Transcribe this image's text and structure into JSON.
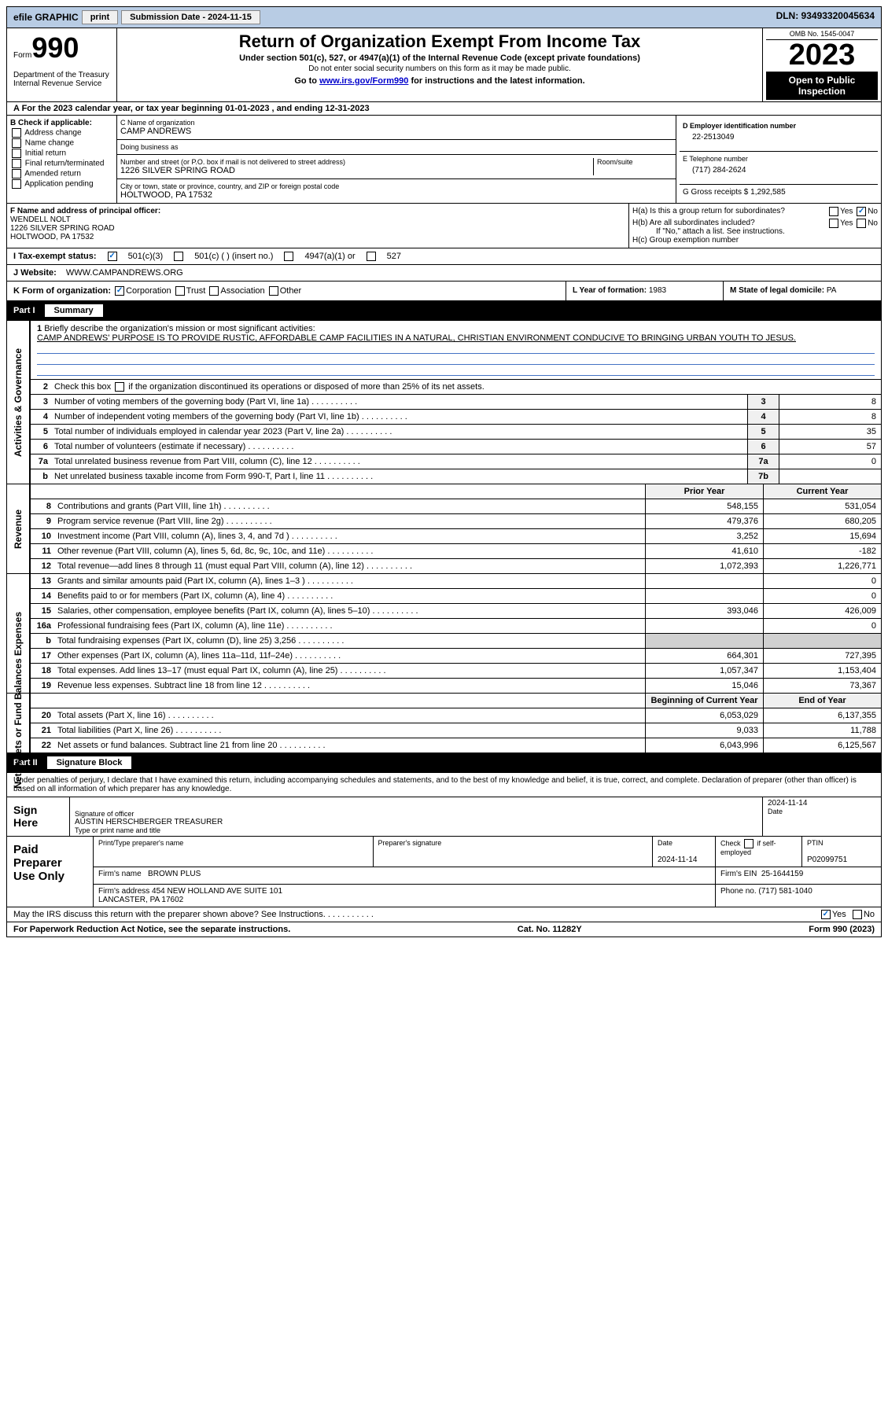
{
  "topbar": {
    "efile_label": "efile GRAPHIC",
    "print_label": "print",
    "submission_label": "Submission Date - 2024-11-15",
    "dln_label": "DLN: 93493320045634"
  },
  "header": {
    "form_label": "Form",
    "form_number": "990",
    "dept": "Department of the Treasury\nInternal Revenue Service",
    "title": "Return of Organization Exempt From Income Tax",
    "subtitle": "Under section 501(c), 527, or 4947(a)(1) of the Internal Revenue Code (except private foundations)",
    "note": "Do not enter social security numbers on this form as it may be made public.",
    "link_pre": "Go to ",
    "link_url": "www.irs.gov/Form990",
    "link_post": " for instructions and the latest information.",
    "omb": "OMB No. 1545-0047",
    "year": "2023",
    "inspection": "Open to Public Inspection"
  },
  "row_a": "A For the 2023 calendar year, or tax year beginning 01-01-2023   , and ending 12-31-2023",
  "box_b": {
    "title": "B Check if applicable:",
    "items": [
      "Address change",
      "Name change",
      "Initial return",
      "Final return/terminated",
      "Amended return",
      "Application pending"
    ]
  },
  "box_c": {
    "name_label": "C Name of organization",
    "name": "CAMP ANDREWS",
    "dba_label": "Doing business as",
    "dba": "",
    "addr_label": "Number and street (or P.O. box if mail is not delivered to street address)",
    "addr": "1226 SILVER SPRING ROAD",
    "room_label": "Room/suite",
    "city_label": "City or town, state or province, country, and ZIP or foreign postal code",
    "city": "HOLTWOOD, PA  17532"
  },
  "box_d": {
    "label": "D Employer identification number",
    "ein": "22-2513049",
    "phone_label": "E Telephone number",
    "phone": "(717) 284-2624",
    "gross_label": "G Gross receipts $",
    "gross": "1,292,585"
  },
  "box_f": {
    "label": "F Name and address of principal officer:",
    "name": "WENDELL NOLT",
    "addr1": "1226 SILVER SPRING ROAD",
    "addr2": "HOLTWOOD, PA  17532"
  },
  "box_h": {
    "ha": "H(a)  Is this a group return for subordinates?",
    "hb": "H(b)  Are all subordinates included?",
    "hb_note": "If \"No,\" attach a list. See instructions.",
    "hc": "H(c)  Group exemption number",
    "yes": "Yes",
    "no": "No"
  },
  "row_i": {
    "label": "I   Tax-exempt status:",
    "opt1": "501(c)(3)",
    "opt2": "501(c) (  ) (insert no.)",
    "opt3": "4947(a)(1) or",
    "opt4": "527"
  },
  "row_j": {
    "label": "J   Website:",
    "val": "WWW.CAMPANDREWS.ORG"
  },
  "row_k": {
    "label": "K Form of organization:",
    "opts": [
      "Corporation",
      "Trust",
      "Association",
      "Other"
    ]
  },
  "row_l": {
    "label": "L Year of formation:",
    "val": "1983"
  },
  "row_m": {
    "label": "M State of legal domicile:",
    "val": "PA"
  },
  "part1": {
    "num": "Part I",
    "title": "Summary",
    "sidebar_gov": "Activities & Governance",
    "sidebar_rev": "Revenue",
    "sidebar_exp": "Expenses",
    "sidebar_net": "Net Assets or Fund Balances",
    "q1_label": "Briefly describe the organization's mission or most significant activities:",
    "q1_text": "CAMP ANDREWS' PURPOSE IS TO PROVIDE RUSTIC, AFFORDABLE CAMP FACILITIES IN A NATURAL, CHRISTIAN ENVIRONMENT CONDUCIVE TO BRINGING URBAN YOUTH TO JESUS.",
    "q2": "Check this box      if the organization discontinued its operations or disposed of more than 25% of its net assets.",
    "rows_gov": [
      {
        "n": "3",
        "t": "Number of voting members of the governing body (Part VI, line 1a)",
        "box": "3",
        "v": "8"
      },
      {
        "n": "4",
        "t": "Number of independent voting members of the governing body (Part VI, line 1b)",
        "box": "4",
        "v": "8"
      },
      {
        "n": "5",
        "t": "Total number of individuals employed in calendar year 2023 (Part V, line 2a)",
        "box": "5",
        "v": "35"
      },
      {
        "n": "6",
        "t": "Total number of volunteers (estimate if necessary)",
        "box": "6",
        "v": "57"
      },
      {
        "n": "7a",
        "t": "Total unrelated business revenue from Part VIII, column (C), line 12",
        "box": "7a",
        "v": "0"
      },
      {
        "n": "b",
        "t": "Net unrelated business taxable income from Form 990-T, Part I, line 11",
        "box": "7b",
        "v": ""
      }
    ],
    "prior_label": "Prior Year",
    "curr_label": "Current Year",
    "rows_rev": [
      {
        "n": "8",
        "t": "Contributions and grants (Part VIII, line 1h)",
        "p": "548,155",
        "c": "531,054"
      },
      {
        "n": "9",
        "t": "Program service revenue (Part VIII, line 2g)",
        "p": "479,376",
        "c": "680,205"
      },
      {
        "n": "10",
        "t": "Investment income (Part VIII, column (A), lines 3, 4, and 7d )",
        "p": "3,252",
        "c": "15,694"
      },
      {
        "n": "11",
        "t": "Other revenue (Part VIII, column (A), lines 5, 6d, 8c, 9c, 10c, and 11e)",
        "p": "41,610",
        "c": "-182"
      },
      {
        "n": "12",
        "t": "Total revenue—add lines 8 through 11 (must equal Part VIII, column (A), line 12)",
        "p": "1,072,393",
        "c": "1,226,771"
      }
    ],
    "rows_exp": [
      {
        "n": "13",
        "t": "Grants and similar amounts paid (Part IX, column (A), lines 1–3 )",
        "p": "",
        "c": "0"
      },
      {
        "n": "14",
        "t": "Benefits paid to or for members (Part IX, column (A), line 4)",
        "p": "",
        "c": "0"
      },
      {
        "n": "15",
        "t": "Salaries, other compensation, employee benefits (Part IX, column (A), lines 5–10)",
        "p": "393,046",
        "c": "426,009"
      },
      {
        "n": "16a",
        "t": "Professional fundraising fees (Part IX, column (A), line 11e)",
        "p": "",
        "c": "0"
      },
      {
        "n": "b",
        "t": "Total fundraising expenses (Part IX, column (D), line 25) 3,256",
        "p": "shaded",
        "c": "shaded"
      },
      {
        "n": "17",
        "t": "Other expenses (Part IX, column (A), lines 11a–11d, 11f–24e)",
        "p": "664,301",
        "c": "727,395"
      },
      {
        "n": "18",
        "t": "Total expenses. Add lines 13–17 (must equal Part IX, column (A), line 25)",
        "p": "1,057,347",
        "c": "1,153,404"
      },
      {
        "n": "19",
        "t": "Revenue less expenses. Subtract line 18 from line 12",
        "p": "15,046",
        "c": "73,367"
      }
    ],
    "begin_label": "Beginning of Current Year",
    "end_label": "End of Year",
    "rows_net": [
      {
        "n": "20",
        "t": "Total assets (Part X, line 16)",
        "p": "6,053,029",
        "c": "6,137,355"
      },
      {
        "n": "21",
        "t": "Total liabilities (Part X, line 26)",
        "p": "9,033",
        "c": "11,788"
      },
      {
        "n": "22",
        "t": "Net assets or fund balances. Subtract line 21 from line 20",
        "p": "6,043,996",
        "c": "6,125,567"
      }
    ]
  },
  "part2": {
    "num": "Part II",
    "title": "Signature Block",
    "intro": "Under penalties of perjury, I declare that I have examined this return, including accompanying schedules and statements, and to the best of my knowledge and belief, it is true, correct, and complete. Declaration of preparer (other than officer) is based on all information of which preparer has any knowledge."
  },
  "sign": {
    "here": "Sign Here",
    "sig_officer_label": "Signature of officer",
    "officer": "AUSTIN HERSCHBERGER  TREASURER",
    "type_label": "Type or print name and title",
    "date_label": "Date",
    "date": "2024-11-14"
  },
  "prep": {
    "label": "Paid Preparer Use Only",
    "name_label": "Print/Type preparer's name",
    "sig_label": "Preparer's signature",
    "date_label": "Date",
    "date": "2024-11-14",
    "check_label": "Check       if self-employed",
    "ptin_label": "PTIN",
    "ptin": "P02099751",
    "firm_name_label": "Firm's name",
    "firm_name": "BROWN PLUS",
    "firm_ein_label": "Firm's EIN",
    "firm_ein": "25-1644159",
    "firm_addr_label": "Firm's address",
    "firm_addr": "454 NEW HOLLAND AVE SUITE 101\nLANCASTER, PA  17602",
    "phone_label": "Phone no.",
    "phone": "(717) 581-1040"
  },
  "footer": {
    "discuss": "May the IRS discuss this return with the preparer shown above? See Instructions.",
    "yes": "Yes",
    "no": "No",
    "paperwork": "For Paperwork Reduction Act Notice, see the separate instructions.",
    "cat": "Cat. No. 11282Y",
    "form": "Form 990 (2023)"
  }
}
